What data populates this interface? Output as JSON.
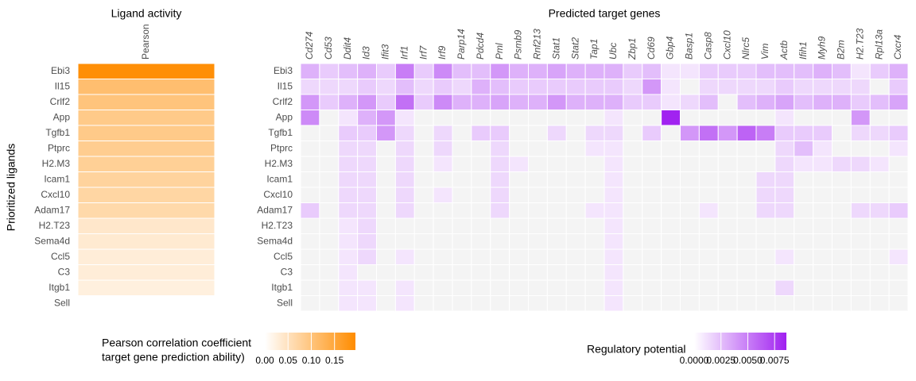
{
  "chart_data": [
    {
      "type": "heatmap",
      "title": "Ligand activity",
      "ylabel": "Prioritized ligands",
      "columns": [
        "Pearson"
      ],
      "rows": [
        "Ebi3",
        "Il15",
        "Crlf2",
        "App",
        "Tgfb1",
        "Ptprc",
        "H2.M3",
        "Icam1",
        "Cxcl10",
        "Adam17",
        "H2.T23",
        "Sema4d",
        "Ccl5",
        "C3",
        "Itgb1",
        "Sell"
      ],
      "values": [
        [
          0.19
        ],
        [
          0.11
        ],
        [
          0.1
        ],
        [
          0.09
        ],
        [
          0.09
        ],
        [
          0.085
        ],
        [
          0.08
        ],
        [
          0.075
        ],
        [
          0.07
        ],
        [
          0.065
        ],
        [
          0.04
        ],
        [
          0.035
        ],
        [
          0.03
        ],
        [
          0.03
        ],
        [
          0.025
        ],
        [
          0.0
        ]
      ],
      "low_color": "#ffffff",
      "high_color": "#ff8c00",
      "na_color": "#f4f4f4",
      "legend_title": [
        "Pearson correlation coefficient",
        "target gene prediction ability)"
      ],
      "colorlim": [
        0,
        0.195
      ],
      "colorticks": [
        {
          "value": 0,
          "label": "0.00"
        },
        0.05,
        {
          "value": 0.1,
          "label": "0.10"
        },
        0.15
      ]
    },
    {
      "type": "heatmap",
      "title": "Predicted target genes",
      "columns": [
        "Cd274",
        "Cd53",
        "Ddit4",
        "Id3",
        "Ifit3",
        "Irf1",
        "Irf7",
        "Irf9",
        "Parp14",
        "Pdcd4",
        "Pml",
        "Psmb9",
        "Rnf213",
        "Stat1",
        "Stat2",
        "Tap1",
        "Ubc",
        "Zbp1",
        "Cd69",
        "Gbp4",
        "Basp1",
        "Casp8",
        "Cxcl10",
        "Nlrc5",
        "Vim",
        "Actb",
        "Ifih1",
        "Myh9",
        "B2m",
        "H2.T23",
        "Rpl13a",
        "Cxcr4"
      ],
      "rows": [
        "Ebi3",
        "Il15",
        "Crlf2",
        "App",
        "Tgfb1",
        "Ptprc",
        "H2.M3",
        "Icam1",
        "Cxcl10",
        "Adam17",
        "H2.T23",
        "Sema4d",
        "Ccl5",
        "C3",
        "Itgb1",
        "Sell"
      ],
      "values": [
        [
          0.003,
          0.002,
          0.0025,
          0.003,
          0.002,
          0.005,
          0.002,
          0.0045,
          0.0025,
          0.0025,
          0.004,
          0.003,
          0.003,
          0.0035,
          0.003,
          0.003,
          0.003,
          0.002,
          0.0025,
          0.001,
          0.001,
          0.002,
          0.002,
          0.002,
          0.0025,
          0.0025,
          0.0025,
          0.003,
          0.0025,
          0.001,
          0.002,
          0.003
        ],
        [
          0.0015,
          0.0015,
          0.0015,
          0.002,
          0.0015,
          0.0025,
          0.0015,
          0.002,
          0.0015,
          0.003,
          0.0025,
          0.002,
          0.002,
          0.002,
          0.002,
          0.002,
          0.002,
          0.0015,
          0.004,
          0.001,
          null,
          0.0015,
          0.0015,
          0.0015,
          0.0015,
          0.002,
          0.0015,
          0.0015,
          0.0015,
          0.0015,
          null,
          0.002
        ],
        [
          0.004,
          0.002,
          0.003,
          0.004,
          0.002,
          0.0055,
          0.002,
          0.0045,
          0.003,
          0.003,
          0.0035,
          0.003,
          0.003,
          0.004,
          0.003,
          0.003,
          0.003,
          0.002,
          0.002,
          0.001,
          0.0015,
          0.0025,
          null,
          0.0025,
          0.003,
          0.0035,
          0.0025,
          0.003,
          0.003,
          0.002,
          0.0025,
          0.0035
        ],
        [
          0.0045,
          null,
          0.001,
          0.003,
          0.004,
          0.001,
          null,
          null,
          null,
          null,
          null,
          null,
          null,
          null,
          null,
          null,
          0.001,
          null,
          null,
          0.0085,
          null,
          null,
          null,
          null,
          null,
          0.001,
          null,
          null,
          null,
          0.004,
          null,
          null
        ],
        [
          null,
          null,
          0.002,
          0.002,
          0.004,
          0.0015,
          null,
          0.0015,
          null,
          0.002,
          0.002,
          null,
          null,
          0.0015,
          null,
          0.0015,
          0.0015,
          null,
          0.002,
          null,
          0.004,
          0.0055,
          0.004,
          0.006,
          0.005,
          0.002,
          0.002,
          0.002,
          null,
          0.0015,
          0.0015,
          0.002
        ],
        [
          null,
          null,
          0.0015,
          0.0015,
          null,
          0.0015,
          null,
          0.0015,
          null,
          null,
          0.0015,
          null,
          null,
          null,
          null,
          0.001,
          0.001,
          null,
          null,
          null,
          null,
          null,
          null,
          null,
          null,
          0.0015,
          0.0025,
          0.001,
          null,
          null,
          null,
          0.001
        ],
        [
          null,
          null,
          0.0015,
          0.0015,
          null,
          0.0015,
          null,
          0.001,
          null,
          null,
          0.0015,
          0.001,
          null,
          null,
          null,
          null,
          0.001,
          null,
          null,
          null,
          null,
          null,
          null,
          null,
          null,
          0.0015,
          0.001,
          0.001,
          0.0015,
          0.0015,
          0.001,
          null
        ],
        [
          null,
          null,
          0.0015,
          0.0015,
          null,
          0.0015,
          null,
          null,
          null,
          null,
          0.0015,
          null,
          null,
          null,
          null,
          null,
          0.001,
          null,
          null,
          null,
          null,
          null,
          null,
          null,
          0.0015,
          0.0015,
          null,
          null,
          null,
          null,
          null,
          null
        ],
        [
          null,
          null,
          0.0015,
          0.0015,
          null,
          0.0015,
          null,
          0.001,
          null,
          null,
          0.0015,
          null,
          null,
          null,
          null,
          null,
          0.001,
          null,
          null,
          null,
          null,
          null,
          null,
          null,
          0.0015,
          0.0015,
          null,
          null,
          null,
          null,
          null,
          null
        ],
        [
          0.002,
          null,
          0.0015,
          0.0015,
          null,
          0.0015,
          null,
          null,
          null,
          null,
          0.0015,
          null,
          null,
          null,
          null,
          0.001,
          0.001,
          null,
          null,
          null,
          null,
          0.001,
          null,
          null,
          0.0015,
          0.0015,
          null,
          null,
          null,
          0.0015,
          0.0015,
          0.002
        ],
        [
          null,
          null,
          0.001,
          0.0015,
          null,
          null,
          null,
          null,
          null,
          null,
          null,
          null,
          null,
          null,
          null,
          null,
          0.001,
          null,
          null,
          null,
          null,
          null,
          null,
          null,
          null,
          null,
          null,
          null,
          null,
          null,
          null,
          null
        ],
        [
          null,
          null,
          0.001,
          0.0015,
          null,
          null,
          null,
          null,
          null,
          null,
          null,
          null,
          null,
          null,
          null,
          null,
          0.001,
          null,
          null,
          null,
          null,
          null,
          null,
          null,
          null,
          null,
          null,
          null,
          null,
          null,
          null,
          null
        ],
        [
          null,
          null,
          0.001,
          0.0015,
          null,
          0.001,
          null,
          null,
          null,
          null,
          null,
          null,
          null,
          null,
          null,
          null,
          0.001,
          null,
          null,
          null,
          null,
          null,
          null,
          null,
          null,
          0.001,
          null,
          null,
          null,
          null,
          null,
          0.001
        ],
        [
          null,
          null,
          0.001,
          null,
          null,
          null,
          null,
          null,
          null,
          null,
          null,
          null,
          null,
          null,
          null,
          null,
          0.001,
          null,
          null,
          null,
          null,
          null,
          null,
          null,
          null,
          null,
          null,
          null,
          null,
          null,
          null,
          null
        ],
        [
          null,
          null,
          0.001,
          0.001,
          null,
          0.001,
          null,
          null,
          null,
          null,
          null,
          null,
          null,
          null,
          null,
          null,
          0.001,
          null,
          null,
          null,
          null,
          null,
          null,
          null,
          null,
          0.0015,
          null,
          null,
          null,
          null,
          null,
          null
        ],
        [
          null,
          null,
          0.001,
          0.001,
          null,
          0.001,
          null,
          null,
          null,
          null,
          null,
          null,
          null,
          null,
          null,
          null,
          0.001,
          null,
          null,
          null,
          null,
          null,
          null,
          null,
          null,
          null,
          null,
          null,
          null,
          null,
          null,
          null
        ]
      ],
      "low_color": "#ffffff",
      "high_color": "#a020f0",
      "na_color": "#f4f4f4",
      "legend_title": [
        "Regulatory potential"
      ],
      "colorlim": [
        0,
        0.0086
      ],
      "colorticks": [
        {
          "value": 0,
          "label": "0.0000"
        },
        0.0025,
        {
          "value": 0.005,
          "label": "0.0050"
        },
        0.0075
      ]
    }
  ]
}
